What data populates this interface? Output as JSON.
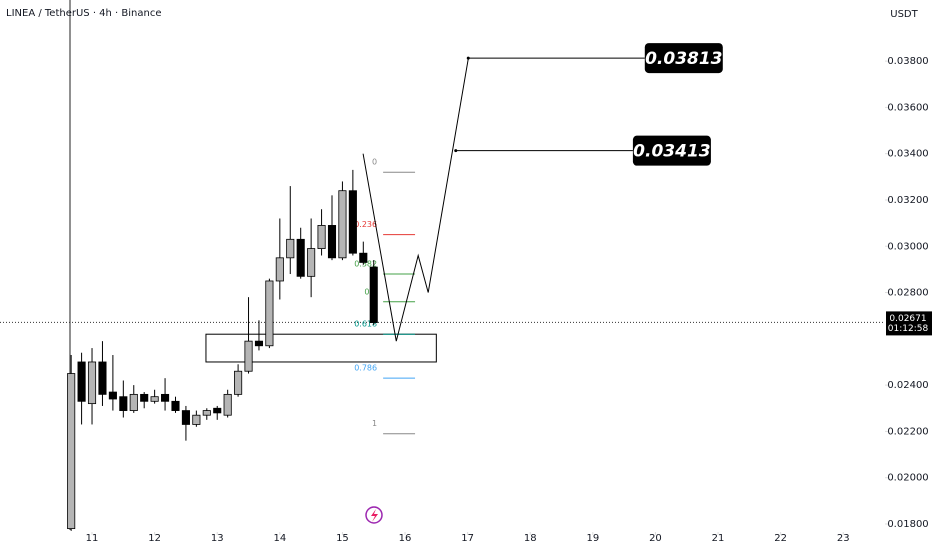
{
  "chart_data": {
    "type": "candlestick",
    "title": "LINEA / TetherUS · 4h · Binance",
    "y_axis_label": "USDT",
    "x": [
      10.6667,
      10.8333,
      11.0,
      11.1667,
      11.3333,
      11.5,
      11.6667,
      11.8333,
      12.0,
      12.1667,
      12.3333,
      12.5,
      12.6667,
      12.8333,
      13.0,
      13.1667,
      13.3333,
      13.5,
      13.6667,
      13.8333,
      14.0,
      14.1667,
      14.3333,
      14.5,
      14.6667,
      14.8333,
      15.0,
      15.1667,
      15.3333,
      15.5
    ],
    "open": [
      0.0178,
      0.025,
      0.0232,
      0.025,
      0.0237,
      0.0235,
      0.0229,
      0.0236,
      0.0233,
      0.0236,
      0.0233,
      0.0229,
      0.0223,
      0.0227,
      0.023,
      0.0227,
      0.0236,
      0.0246,
      0.0259,
      0.0257,
      0.0285,
      0.0295,
      0.0303,
      0.0287,
      0.0299,
      0.0309,
      0.0295,
      0.0324,
      0.0297,
      0.0291
    ],
    "high": [
      0.0253,
      0.0254,
      0.0256,
      0.0259,
      0.0253,
      0.0242,
      0.024,
      0.0237,
      0.0238,
      0.0243,
      0.0235,
      0.0231,
      0.0229,
      0.023,
      0.0231,
      0.0238,
      0.0249,
      0.0278,
      0.0268,
      0.0286,
      0.0312,
      0.0326,
      0.0308,
      0.0312,
      0.0316,
      0.0322,
      0.0328,
      0.0333,
      0.0302,
      0.0294
    ],
    "low": [
      0.0177,
      0.0223,
      0.0223,
      0.0231,
      0.0229,
      0.0226,
      0.0228,
      0.023,
      0.0232,
      0.0229,
      0.0228,
      0.0216,
      0.0222,
      0.0225,
      0.0225,
      0.0226,
      0.0235,
      0.0245,
      0.0255,
      0.0256,
      0.0277,
      0.0288,
      0.0286,
      0.0278,
      0.0296,
      0.0294,
      0.0294,
      0.0296,
      0.0292,
      0.0266
    ],
    "close": [
      0.0245,
      0.0233,
      0.025,
      0.0236,
      0.0234,
      0.0229,
      0.0236,
      0.0233,
      0.0235,
      0.0233,
      0.0229,
      0.0223,
      0.0227,
      0.0229,
      0.0228,
      0.0236,
      0.0246,
      0.0259,
      0.0257,
      0.0285,
      0.0295,
      0.0303,
      0.0287,
      0.0299,
      0.0309,
      0.0295,
      0.0324,
      0.0297,
      0.0293,
      0.0267
    ],
    "up_color": "#b5b5b5",
    "down_color": "#000000",
    "xlim": [
      9.53,
      23.667
    ],
    "xticks": [
      11,
      12,
      13,
      14,
      15,
      16,
      17,
      18,
      19,
      20,
      21,
      22,
      23
    ],
    "ylim": [
      0.01774,
      0.04064
    ],
    "yticks": [
      {
        "value": 0.018,
        "label": "0.01800"
      },
      {
        "value": 0.02,
        "label": "0.02000"
      },
      {
        "value": 0.022,
        "label": "0.02200"
      },
      {
        "value": 0.024,
        "label": "0.02400"
      },
      {
        "value": 0.028,
        "label": "0.02800"
      },
      {
        "value": 0.03,
        "label": "0.03000"
      },
      {
        "value": 0.032,
        "label": "0.03200"
      },
      {
        "value": 0.034,
        "label": "0.03400"
      },
      {
        "value": 0.036,
        "label": "0.03600"
      },
      {
        "value": 0.038,
        "label": "0.03800"
      }
    ],
    "current_price": 0.02671,
    "countdown": "01:12:58",
    "fib": {
      "levels": [
        0,
        0.236,
        0.382,
        0.5,
        0.618,
        0.786,
        1
      ],
      "prices": [
        0.0332,
        0.0305,
        0.0288,
        0.0276,
        0.0262,
        0.0243,
        0.0219
      ],
      "colors": [
        "#888888",
        "#e53935",
        "#43a047",
        "#43a047",
        "#009688",
        "#42a5f5",
        "#888888"
      ],
      "x": [
        15.65,
        16.16
      ]
    },
    "zone": {
      "x": [
        12.82,
        16.5
      ],
      "y": [
        0.025,
        0.0262
      ]
    },
    "projection": {
      "x": [
        15.33,
        15.86,
        16.21,
        16.37,
        17.01
      ],
      "y": [
        0.034,
        0.0259,
        0.0296,
        0.028,
        0.0381
      ]
    },
    "targets": {
      "values": [
        0.03813,
        0.03413
      ],
      "from_x": [
        17.01,
        16.81
      ],
      "to_x": [
        19.83,
        19.64
      ]
    }
  }
}
